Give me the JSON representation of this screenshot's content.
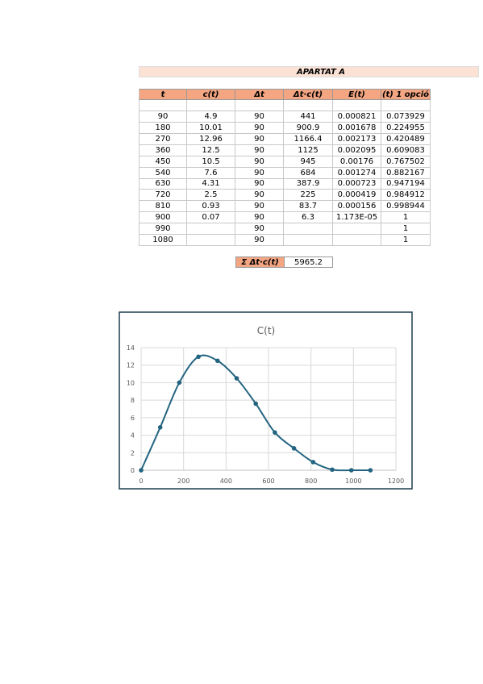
{
  "table": {
    "title": "APARTAT A",
    "columns": [
      "t",
      "c(t)",
      "Δt",
      "Δt·c(t)",
      "E(t)",
      "(t) 1 opció"
    ],
    "rows": [
      [
        "90",
        "4.9",
        "90",
        "441",
        "0.000821",
        "0.073929"
      ],
      [
        "180",
        "10.01",
        "90",
        "900.9",
        "0.001678",
        "0.224955"
      ],
      [
        "270",
        "12.96",
        "90",
        "1166.4",
        "0.002173",
        "0.420489"
      ],
      [
        "360",
        "12.5",
        "90",
        "1125",
        "0.002095",
        "0.609083"
      ],
      [
        "450",
        "10.5",
        "90",
        "945",
        "0.00176",
        "0.767502"
      ],
      [
        "540",
        "7.6",
        "90",
        "684",
        "0.001274",
        "0.882167"
      ],
      [
        "630",
        "4.31",
        "90",
        "387.9",
        "0.000723",
        "0.947194"
      ],
      [
        "720",
        "2.5",
        "90",
        "225",
        "0.000419",
        "0.984912"
      ],
      [
        "810",
        "0.93",
        "90",
        "83.7",
        "0.000156",
        "0.998944"
      ],
      [
        "900",
        "0.07",
        "90",
        "6.3",
        "1.173E-05",
        "1"
      ],
      [
        "990",
        null,
        "90",
        null,
        null,
        "1"
      ],
      [
        "1080",
        null,
        "90",
        null,
        null,
        "1"
      ]
    ],
    "sum": {
      "label": "Σ Δt·c(t)",
      "value": "5965.2"
    }
  },
  "chart_data": {
    "type": "scatter",
    "title": "C(t)",
    "x": [
      0,
      90,
      180,
      270,
      360,
      450,
      540,
      630,
      720,
      810,
      900,
      990,
      1080
    ],
    "values": [
      0,
      4.9,
      10.01,
      12.96,
      12.5,
      10.5,
      7.6,
      4.31,
      2.5,
      0.93,
      0.07,
      0,
      0
    ],
    "color": "#236480",
    "xlim": [
      0,
      1200
    ],
    "xticks": [
      0,
      200,
      400,
      600,
      800,
      1000,
      1200
    ],
    "ylim": [
      0,
      14
    ],
    "yticks": [
      0,
      2,
      4,
      6,
      8,
      10,
      12,
      14
    ],
    "grid": true
  }
}
